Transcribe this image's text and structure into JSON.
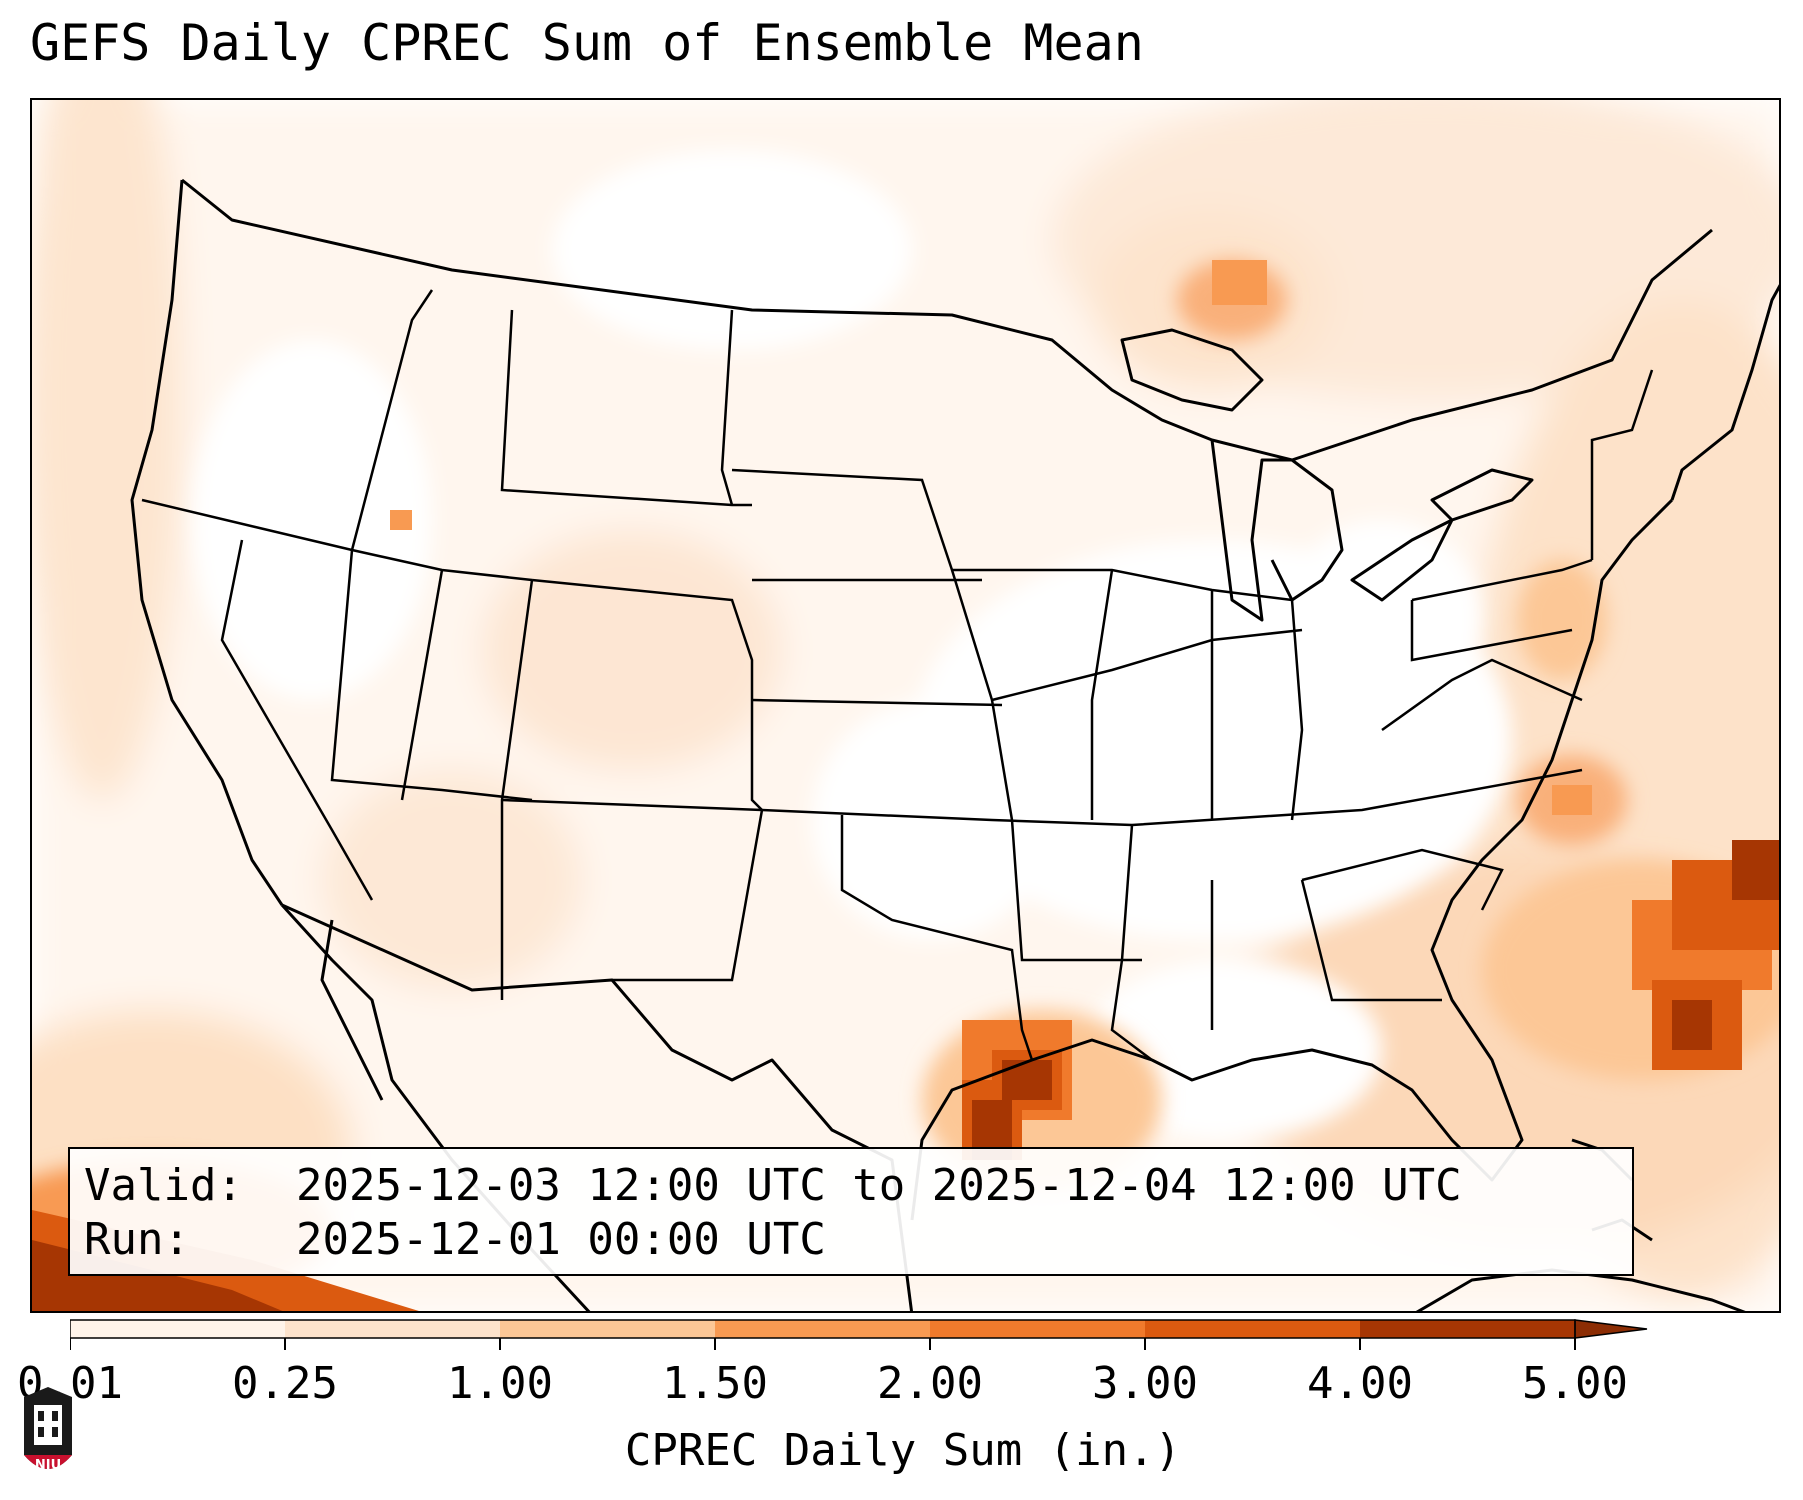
{
  "title": "GEFS Daily CPREC Sum of Ensemble Mean",
  "valid": {
    "label": "Valid:",
    "value": "2025-12-03 12:00 UTC to 2025-12-04 12:00 UTC"
  },
  "run": {
    "label": "Run:",
    "value": "2025-12-01 00:00 UTC"
  },
  "colorbar": {
    "label": "CPREC Daily Sum (in.)",
    "ticks": [
      "0.01",
      "0.25",
      "1.00",
      "1.50",
      "2.00",
      "3.00",
      "4.00",
      "5.00"
    ],
    "colors": [
      "#fff4ea",
      "#fde3cc",
      "#fcc796",
      "#f89a52",
      "#f07a2c",
      "#db5a10",
      "#a63603"
    ]
  },
  "logo": {
    "name": "niu-logo",
    "text": "NIU",
    "color": "#c8102e"
  }
}
